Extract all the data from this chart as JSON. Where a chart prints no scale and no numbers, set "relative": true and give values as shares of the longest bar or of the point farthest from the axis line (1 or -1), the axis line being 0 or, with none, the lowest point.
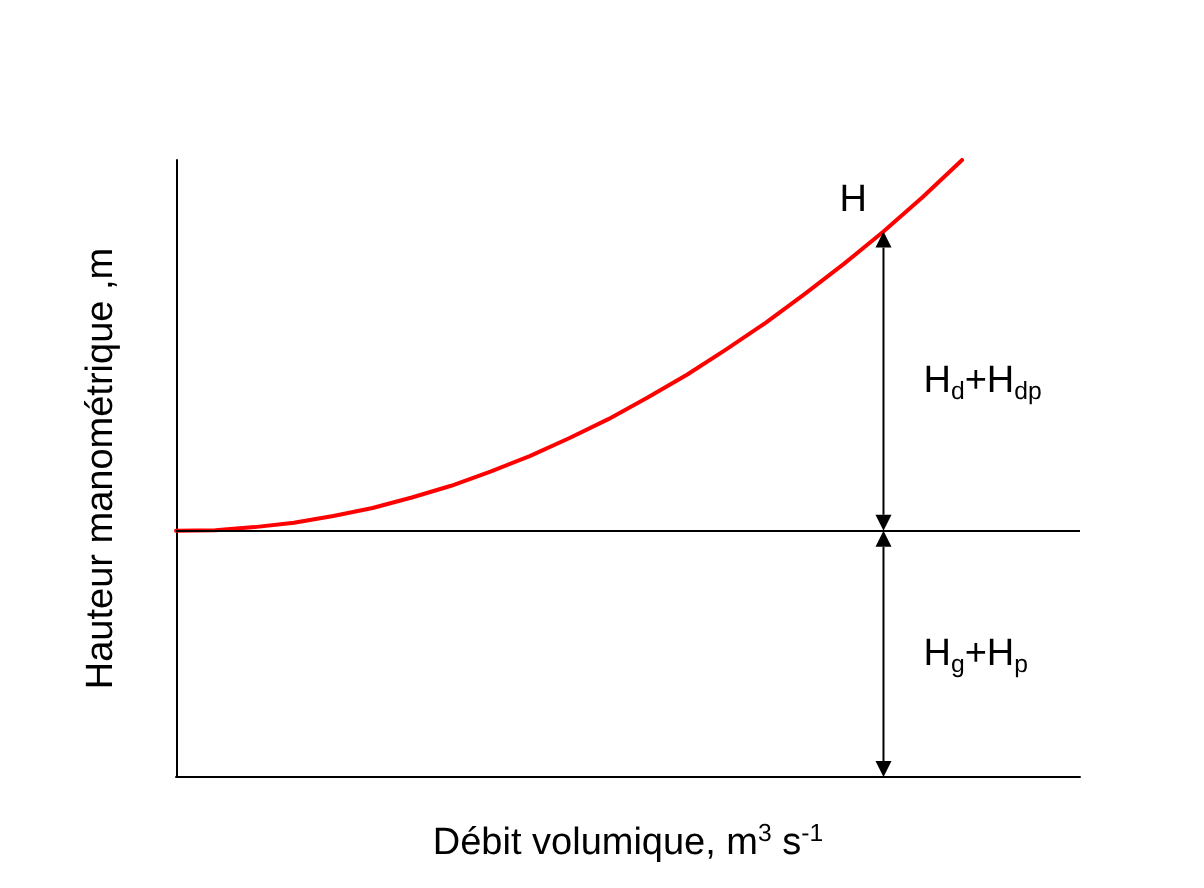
{
  "chart_data": {
    "type": "line",
    "relative": true,
    "xlabel": "Débit volumique, m$^{3}$ s$^{-1}$",
    "ylabel": "Hauteur manométrique ,m",
    "categories": [
      null,
      null,
      null,
      null,
      null,
      null,
      null,
      null,
      null,
      null,
      null,
      null,
      null,
      null,
      null,
      null,
      null,
      null,
      null,
      null,
      null,
      null,
      null,
      null
    ],
    "series": [
      {
        "color": "#ff0000",
        "values": [
          0.399,
          0.4,
          0.405,
          0.412,
          0.423,
          0.436,
          0.453,
          0.472,
          0.495,
          0.52,
          0.549,
          0.58,
          0.615,
          0.652,
          0.693,
          0.736,
          0.783,
          0.832,
          0.884,
          0.94,
          1.0,
          null,
          null,
          null
        ]
      }
    ],
    "ref_lines": [
      {
        "axis": "y",
        "value": 0.399,
        "color": "#000000"
      }
    ],
    "annotations": [
      "H",
      "H$_{d}$+H$_{dp}$",
      "H$_{g}$+H$_{p}$"
    ],
    "grid": false,
    "marker": "none",
    "line_style": "solid"
  }
}
